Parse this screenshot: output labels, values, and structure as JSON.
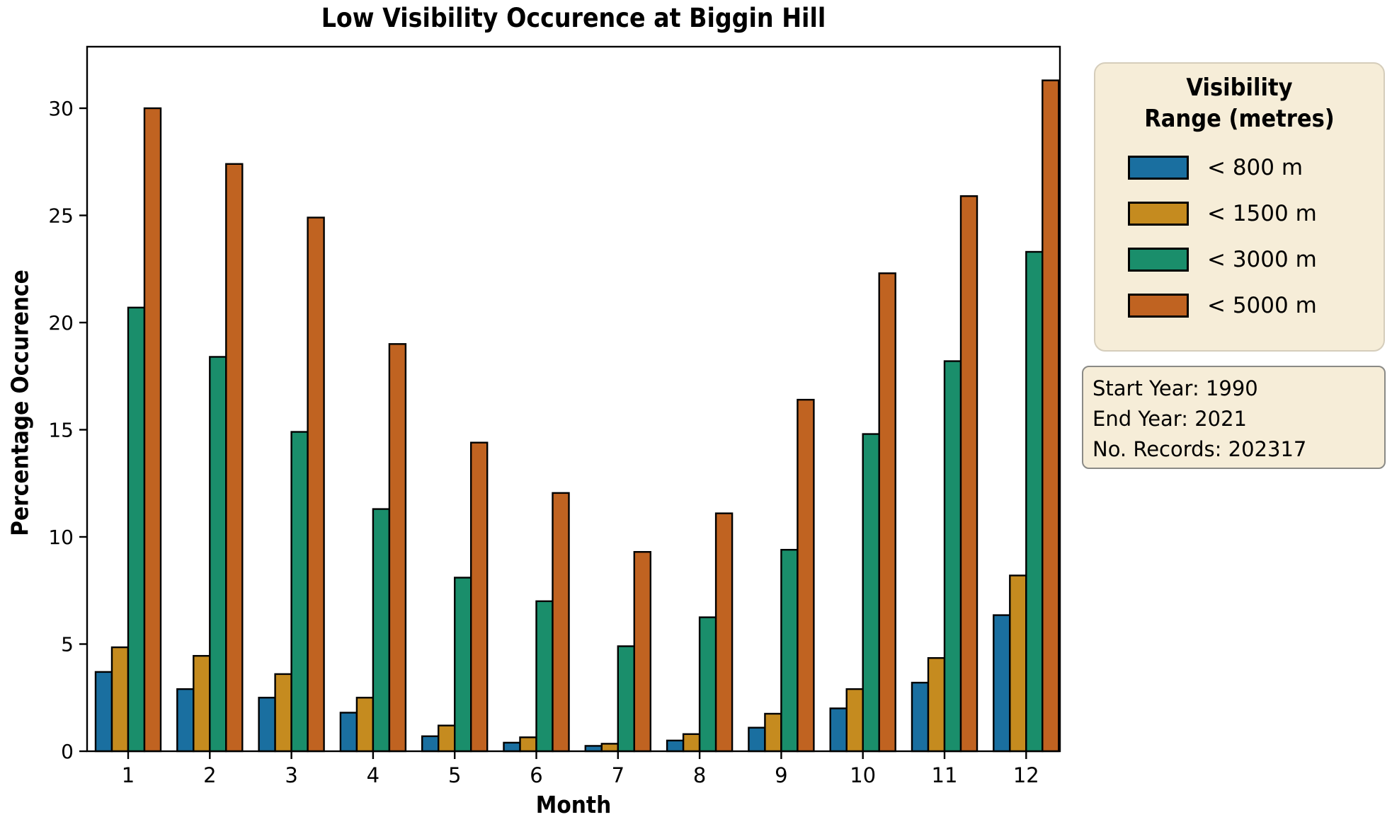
{
  "title": "Low Visibility Occurence at Biggin Hill",
  "axes": {
    "x_label": "Month",
    "y_label": "Percentage Occurence",
    "y_ticks": [
      0,
      5,
      10,
      15,
      20,
      25,
      30
    ],
    "x_tick_labels": [
      "1",
      "2",
      "3",
      "4",
      "5",
      "6",
      "7",
      "8",
      "9",
      "10",
      "11",
      "12"
    ]
  },
  "legend": {
    "title_line1": "Visibility",
    "title_line2": "Range (metres)",
    "background_color": "#F6EDD8",
    "entries": [
      {
        "label": "< 800 m",
        "color": "#1A6FA0"
      },
      {
        "label": "< 1500 m",
        "color": "#C58B1F"
      },
      {
        "label": "< 3000 m",
        "color": "#1A8E6B"
      },
      {
        "label": "< 5000 m",
        "color": "#C06321"
      }
    ]
  },
  "info_box": {
    "line1": "Start Year: 1990",
    "line2": "End Year: 2021",
    "line3": "No. Records: 202317"
  },
  "chart_data": {
    "type": "bar",
    "title": "Low Visibility Occurence at Biggin Hill",
    "xlabel": "Month",
    "ylabel": "Percentage Occurence",
    "categories": [
      1,
      2,
      3,
      4,
      5,
      6,
      7,
      8,
      9,
      10,
      11,
      12
    ],
    "series": [
      {
        "name": "< 800 m",
        "color": "#1A6FA0",
        "values": [
          3.7,
          2.9,
          2.5,
          1.8,
          0.7,
          0.4,
          0.25,
          0.5,
          1.1,
          2.0,
          3.2,
          6.35
        ]
      },
      {
        "name": "< 1500 m",
        "color": "#C58B1F",
        "values": [
          4.85,
          4.45,
          3.6,
          2.5,
          1.2,
          0.65,
          0.35,
          0.8,
          1.75,
          2.9,
          4.35,
          8.2
        ]
      },
      {
        "name": "< 3000 m",
        "color": "#1A8E6B",
        "values": [
          20.7,
          18.4,
          14.9,
          11.3,
          8.1,
          7.0,
          4.9,
          6.25,
          9.4,
          14.8,
          18.2,
          23.3
        ]
      },
      {
        "name": "< 5000 m",
        "color": "#C06321",
        "values": [
          30.0,
          27.4,
          24.9,
          19.0,
          14.4,
          12.05,
          9.3,
          11.1,
          16.4,
          22.3,
          25.9,
          31.3
        ]
      }
    ],
    "ylim": [
      0,
      32.9
    ],
    "grid": false,
    "bar_edge_color": "#000000",
    "legend_position": "outside-right"
  }
}
